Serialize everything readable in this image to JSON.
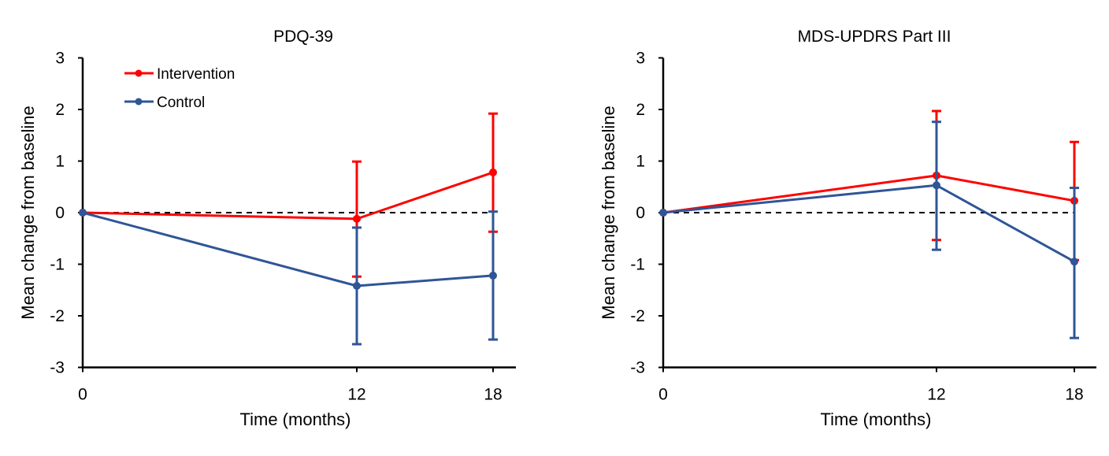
{
  "colors": {
    "intervention": "#FF0000",
    "control": "#2F5597",
    "axis": "#000000",
    "reference": "#000000"
  },
  "chart_data": [
    {
      "type": "line",
      "title": "PDQ-39",
      "xlabel": "Time (months)",
      "ylabel": "Mean change from baseline",
      "x": [
        0,
        12,
        18
      ],
      "xticks": [
        "0",
        "12",
        "18"
      ],
      "ylim": [
        -3,
        3
      ],
      "yticks": [
        "3",
        "2",
        "1",
        "0",
        "-1",
        "-2",
        "-3"
      ],
      "reference_line": 0,
      "grid": false,
      "legend": {
        "placement": "top-left",
        "entries": [
          "Intervention",
          "Control"
        ]
      },
      "series": [
        {
          "name": "Intervention",
          "values": [
            0,
            -0.12,
            0.78
          ],
          "err_upper": [
            0,
            0.99,
            1.92
          ],
          "err_lower": [
            0,
            -1.24,
            -0.37
          ]
        },
        {
          "name": "Control",
          "values": [
            0,
            -1.42,
            -1.22
          ],
          "err_upper": [
            0,
            -0.29,
            0.02
          ],
          "err_lower": [
            0,
            -2.55,
            -2.46
          ]
        }
      ]
    },
    {
      "type": "line",
      "title": "MDS-UPDRS Part III",
      "xlabel": "Time (months)",
      "ylabel": "Mean change from baseline",
      "x": [
        0,
        12,
        18
      ],
      "xticks": [
        "0",
        "12",
        "18"
      ],
      "ylim": [
        -3,
        3
      ],
      "yticks": [
        "3",
        "2",
        "1",
        "0",
        "-1",
        "-2",
        "-3"
      ],
      "reference_line": 0,
      "grid": false,
      "legend": null,
      "series": [
        {
          "name": "Intervention",
          "values": [
            0,
            0.72,
            0.23
          ],
          "err_upper": [
            0,
            1.97,
            1.37
          ],
          "err_lower": [
            0,
            -0.53,
            -0.92
          ]
        },
        {
          "name": "Control",
          "values": [
            0,
            0.53,
            -0.95
          ],
          "err_upper": [
            0,
            1.76,
            0.48
          ],
          "err_lower": [
            0,
            -0.72,
            -2.43
          ]
        }
      ]
    }
  ]
}
